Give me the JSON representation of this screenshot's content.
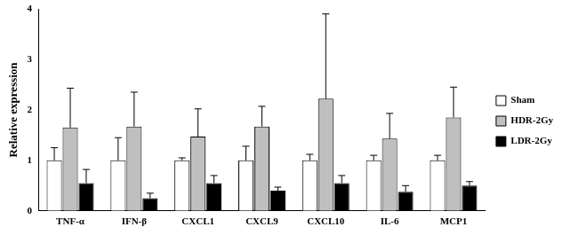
{
  "chart_data": {
    "type": "bar",
    "y_label": "Relative expression",
    "categories": [
      "TNF-α",
      "IFN-β",
      "CXCL1",
      "CXCL9",
      "CXCL10",
      "IL-6",
      "MCP1"
    ],
    "series": [
      {
        "name": "Sham",
        "color": "#ffffff",
        "values": [
          1.0,
          1.0,
          1.0,
          1.0,
          1.0,
          1.0,
          1.0
        ],
        "errors": [
          0.25,
          0.45,
          0.05,
          0.28,
          0.12,
          0.1,
          0.1
        ]
      },
      {
        "name": "HDR-2Gy",
        "color": "#bfbfbf",
        "values": [
          1.65,
          1.67,
          1.47,
          1.67,
          2.22,
          1.43,
          1.85
        ],
        "errors": [
          0.78,
          0.68,
          0.55,
          0.4,
          1.68,
          0.5,
          0.6
        ]
      },
      {
        "name": "LDR-2Gy",
        "color": "#000000",
        "values": [
          0.55,
          0.25,
          0.55,
          0.4,
          0.55,
          0.38,
          0.5
        ],
        "errors": [
          0.27,
          0.1,
          0.15,
          0.07,
          0.15,
          0.12,
          0.08
        ]
      }
    ],
    "ylim": [
      0,
      4
    ],
    "yticks": [
      0,
      1,
      2,
      3,
      4
    ],
    "grid": false,
    "legend": "right"
  }
}
